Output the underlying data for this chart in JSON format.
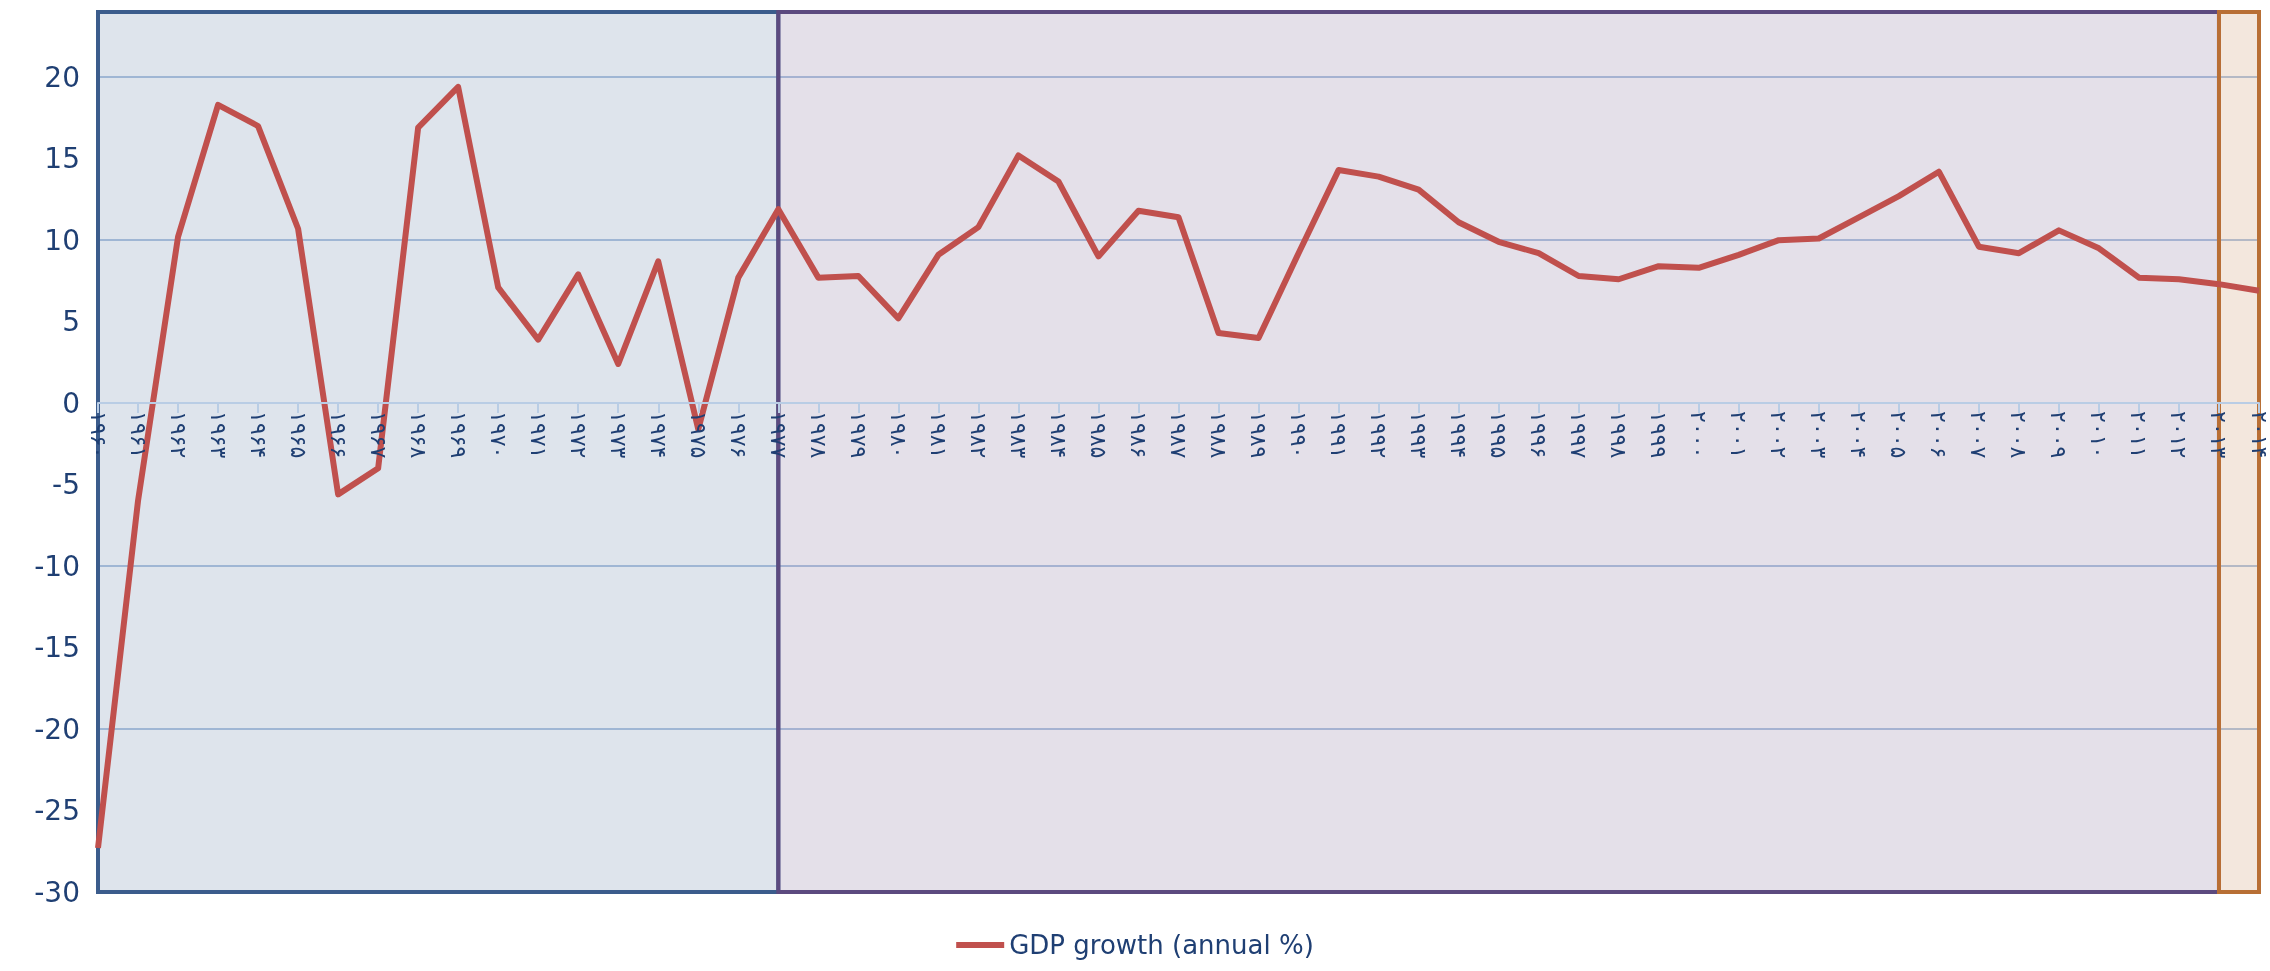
{
  "chart_data": {
    "type": "line",
    "categories": [
      "۱۹۶۰",
      "۱۹۶۱",
      "۱۹۶۲",
      "۱۹۶۳",
      "۱۹۶۴",
      "۱۹۶۵",
      "۱۹۶۶",
      "۱۹۶۷",
      "۱۹۶۸",
      "۱۹۶۹",
      "۱۹۷۰",
      "۱۹۷۱",
      "۱۹۷۲",
      "۱۹۷۳",
      "۱۹۷۴",
      "۱۹۷۵",
      "۱۹۷۶",
      "۱۹۷۷",
      "۱۹۷۸",
      "۱۹۷۹",
      "۱۹۸۰",
      "۱۹۸۱",
      "۱۹۸۲",
      "۱۹۸۳",
      "۱۹۸۴",
      "۱۹۸۵",
      "۱۹۸۶",
      "۱۹۸۷",
      "۱۹۸۸",
      "۱۹۸۹",
      "۱۹۹۰",
      "۱۹۹۱",
      "۱۹۹۲",
      "۱۹۹۳",
      "۱۹۹۴",
      "۱۹۹۵",
      "۱۹۹۶",
      "۱۹۹۷",
      "۱۹۹۸",
      "۱۹۹۹",
      "۲۰۰۰",
      "۲۰۰۱",
      "۲۰۰۲",
      "۲۰۰۳",
      "۲۰۰۴",
      "۲۰۰۵",
      "۲۰۰۶",
      "۲۰۰۷",
      "۲۰۰۸",
      "۲۰۰۹",
      "۲۰۱۰",
      "۲۰۱۱",
      "۲۰۱۲",
      "۲۰۱۳",
      "۲۰۱۴"
    ],
    "series": [
      {
        "name": "GDP growth (annual %)",
        "color": "#c0504d",
        "values": [
          -27.3,
          -6,
          10.2,
          18.3,
          17.0,
          10.7,
          -5.6,
          -4.0,
          16.9,
          19.4,
          7.1,
          3.9,
          7.9,
          2.4,
          8.7,
          -1.6,
          7.7,
          11.9,
          7.7,
          7.8,
          5.2,
          9.1,
          10.8,
          15.2,
          13.6,
          9.0,
          11.8,
          11.4,
          4.3,
          4.0,
          9.2,
          14.3,
          13.9,
          13.1,
          11.1,
          9.9,
          9.2,
          7.8,
          7.6,
          8.4,
          8.3,
          9.1,
          10.0,
          10.1,
          11.4,
          12.7,
          14.2,
          9.6,
          9.2,
          10.6,
          9.5,
          7.7,
          7.6,
          7.3,
          6.9
        ]
      }
    ],
    "ylim": [
      -30,
      24
    ],
    "yticks": [
      -30,
      -25,
      -20,
      -15,
      -10,
      -5,
      0,
      5,
      10,
      15,
      20
    ],
    "grid": "y",
    "legend": "bottom",
    "bands": [
      {
        "axis": "x",
        "from": "۱۹۶۰",
        "to": "۱۹۷۷",
        "color": "#3b5c8c"
      },
      {
        "axis": "x",
        "from": "۱۹۷۷",
        "to": "۲۰۱۳",
        "color": "#5c4a7f"
      },
      {
        "axis": "x",
        "from": "۲۰۱۳",
        "to": "۲۰۱۴",
        "color": "#b86f35"
      }
    ]
  }
}
